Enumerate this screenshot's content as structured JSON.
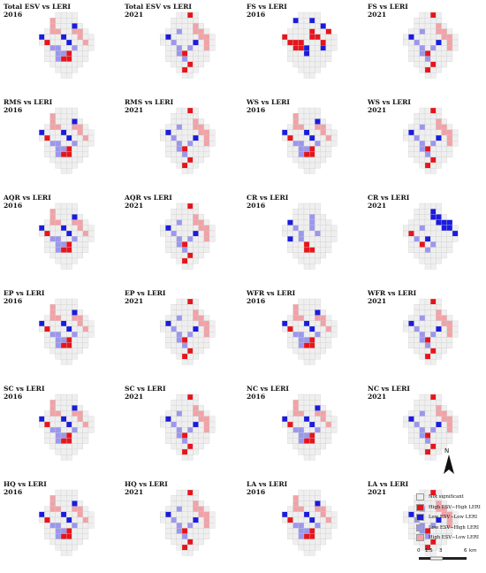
{
  "colors": {
    "not_significant": "#efefef",
    "grid_line": "#c9c9c9",
    "high_high": "#e8141b",
    "low_low": "#1b1be0",
    "low_high": "#9b97ee",
    "high_low": "#f2a2a6"
  },
  "panels": [
    {
      "title": "Total ESV vs LERI",
      "year": "2016",
      "variant": "a"
    },
    {
      "title": "Total ESV vs LERI",
      "year": "2021",
      "variant": "b"
    },
    {
      "title": "FS vs LERI",
      "year": "2016",
      "variant": "fs16"
    },
    {
      "title": "FS vs LERI",
      "year": "2021",
      "variant": "b"
    },
    {
      "title": "RMS vs LERI",
      "year": "2016",
      "variant": "a"
    },
    {
      "title": "RMS vs LERI",
      "year": "2021",
      "variant": "b"
    },
    {
      "title": "WS vs LERI",
      "year": "2016",
      "variant": "a"
    },
    {
      "title": "WS vs LERI",
      "year": "2021",
      "variant": "b"
    },
    {
      "title": "AQR vs LERI",
      "year": "2016",
      "variant": "a"
    },
    {
      "title": "AQR vs LERI",
      "year": "2021",
      "variant": "b"
    },
    {
      "title": "CR vs LERI",
      "year": "2016",
      "variant": "cr16"
    },
    {
      "title": "CR vs LERI",
      "year": "2021",
      "variant": "cr21"
    },
    {
      "title": "EP vs LERI",
      "year": "2016",
      "variant": "a"
    },
    {
      "title": "EP vs LERI",
      "year": "2021",
      "variant": "b"
    },
    {
      "title": "WFR vs LERI",
      "year": "2016",
      "variant": "a"
    },
    {
      "title": "WFR vs LERI",
      "year": "2021",
      "variant": "b"
    },
    {
      "title": "SC vs LERI",
      "year": "2016",
      "variant": "a"
    },
    {
      "title": "SC vs LERI",
      "year": "2021",
      "variant": "b"
    },
    {
      "title": "NC vs LERI",
      "year": "2016",
      "variant": "a"
    },
    {
      "title": "NC vs LERI",
      "year": "2021",
      "variant": "b"
    },
    {
      "title": "HQ vs LERI",
      "year": "2016",
      "variant": "a"
    },
    {
      "title": "HQ vs LERI",
      "year": "2021",
      "variant": "b"
    },
    {
      "title": "LA vs LERI",
      "year": "2016",
      "variant": "a"
    },
    {
      "title": "LA vs LERI",
      "year": "2021",
      "variant": "b"
    }
  ],
  "north_arrow": {
    "label": "N"
  },
  "legend": [
    {
      "label": "Not significant",
      "color_key": "not_significant"
    },
    {
      "label": "High ESV−High LERI",
      "color_key": "high_high"
    },
    {
      "label": "Low ESV−Low LERI",
      "color_key": "low_low"
    },
    {
      "label": "Low ESV−High LERI",
      "color_key": "low_high"
    },
    {
      "label": "High ESV−Low LERI",
      "color_key": "high_low"
    }
  ],
  "scale_bar": {
    "ticks": [
      "0",
      "1.5",
      "3",
      "6"
    ],
    "unit": "km"
  }
}
